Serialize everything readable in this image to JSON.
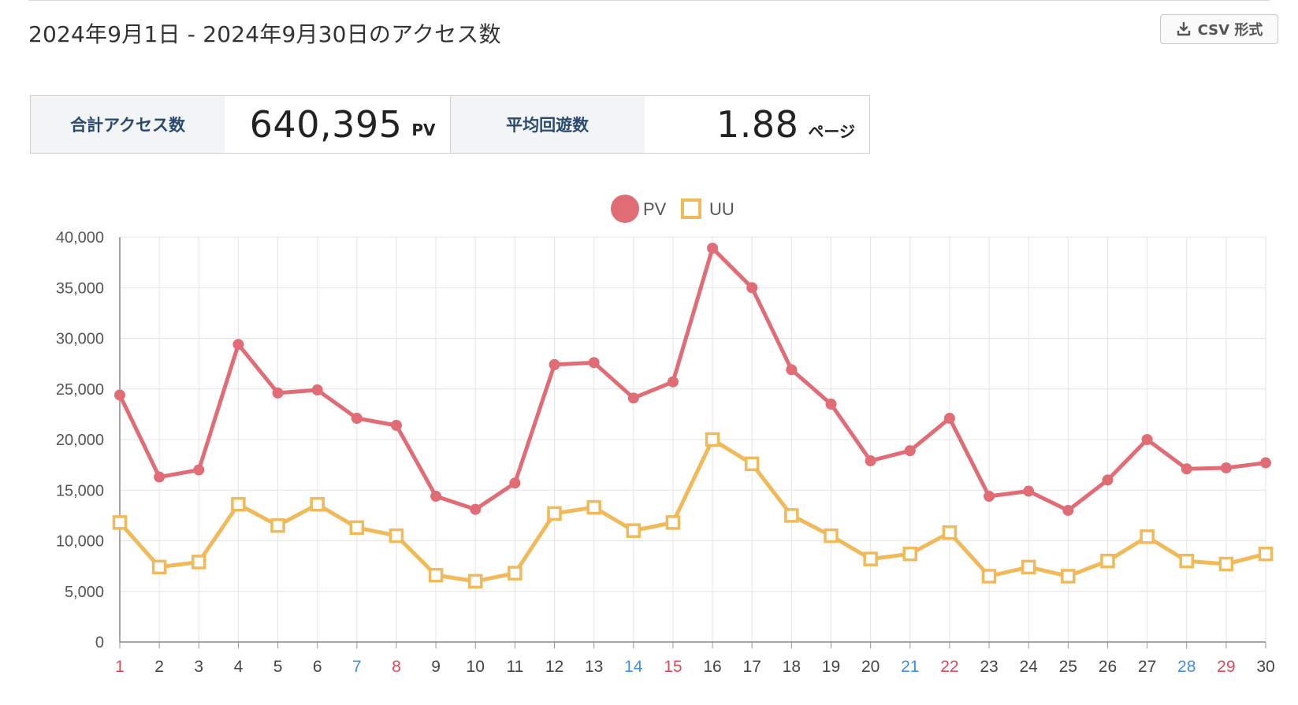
{
  "header": {
    "title": "2024年9月1日 - 2024年9月30日のアクセス数",
    "csv_button": "CSV 形式"
  },
  "summary": {
    "total_label": "合計アクセス数",
    "total_value": "640,395",
    "total_unit": "PV",
    "avg_label": "平均回遊数",
    "avg_value": "1.88",
    "avg_unit": "ページ"
  },
  "chart_data": {
    "type": "line",
    "x": [
      "1",
      "2",
      "3",
      "4",
      "5",
      "6",
      "7",
      "8",
      "9",
      "10",
      "11",
      "12",
      "13",
      "14",
      "15",
      "16",
      "17",
      "18",
      "19",
      "20",
      "21",
      "22",
      "23",
      "24",
      "25",
      "26",
      "27",
      "28",
      "29",
      "30"
    ],
    "x_label_colors": {
      "blue": [
        "7",
        "14",
        "21",
        "28"
      ],
      "red": [
        "1",
        "8",
        "15",
        "22",
        "29"
      ]
    },
    "series": [
      {
        "name": "PV",
        "color": "#e06c75",
        "marker": "circle",
        "values": [
          24400,
          16300,
          17000,
          29400,
          24600,
          24900,
          22100,
          21400,
          14400,
          13100,
          15700,
          27400,
          27600,
          24100,
          25700,
          38900,
          35000,
          26900,
          23500,
          17900,
          18900,
          22100,
          14400,
          14900,
          13000,
          16000,
          20000,
          17100,
          17200,
          17700
        ]
      },
      {
        "name": "UU",
        "color": "#f0b95a",
        "marker": "square",
        "values": [
          11800,
          7400,
          7900,
          13600,
          11500,
          13600,
          11300,
          10500,
          6600,
          6000,
          6800,
          12700,
          13300,
          11000,
          11800,
          20000,
          17600,
          12500,
          10500,
          8200,
          8700,
          10800,
          6500,
          7400,
          6500,
          8000,
          10400,
          8000,
          7700,
          8700
        ]
      }
    ],
    "ylim": [
      0,
      40000
    ],
    "y_ticks": [
      "0",
      "5,000",
      "10,000",
      "15,000",
      "20,000",
      "25,000",
      "30,000",
      "35,000",
      "40,000"
    ],
    "grid": true,
    "legend": "top-center"
  }
}
